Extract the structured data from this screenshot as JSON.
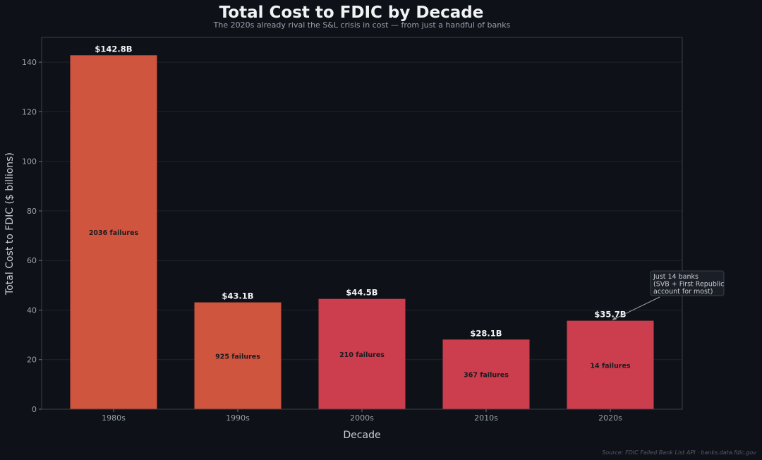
{
  "chart_data": {
    "type": "bar",
    "title": "Total Cost to FDIC by Decade",
    "subtitle": "The 2020s already rival the S&L crisis in cost — from just a handful of banks",
    "xlabel": "Decade",
    "ylabel": "Total Cost to FDIC ($ billions)",
    "ylim": [
      0,
      150
    ],
    "yticks": [
      0,
      20,
      40,
      60,
      80,
      100,
      120,
      140
    ],
    "grid": true,
    "categories": [
      "1980s",
      "1990s",
      "2000s",
      "2010s",
      "2020s"
    ],
    "values": [
      142.8,
      43.1,
      44.5,
      28.1,
      35.7
    ],
    "value_labels": [
      "$142.8B",
      "$43.1B",
      "$44.5B",
      "$28.1B",
      "$35.7B"
    ],
    "failures": [
      2036,
      925,
      210,
      367,
      14
    ],
    "failure_labels": [
      "2036 failures",
      "925 failures",
      "210 failures",
      "367 failures",
      "14 failures"
    ],
    "bar_colors": [
      "#cf553f",
      "#cf553f",
      "#cc3d4e",
      "#cc3d4e",
      "#cc3d4e"
    ],
    "annotation": {
      "target_category": "2020s",
      "lines": [
        "Just 14 banks",
        "(SVB + First Republic",
        "account for most)"
      ]
    },
    "source": "Source: FDIC Failed Bank List API  ·  banks.data.fdic.gov"
  },
  "colors": {
    "background": "#0e1118",
    "grid": "#1f232b",
    "frame": "#3a3f48"
  }
}
